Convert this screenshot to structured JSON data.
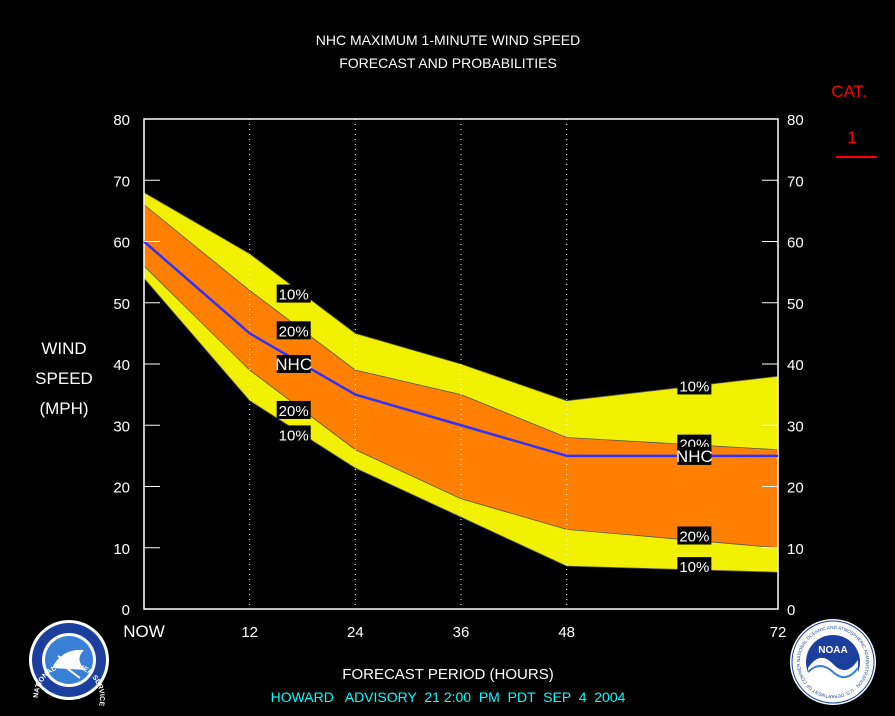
{
  "chart_data": {
    "type": "area",
    "title": "NHC MAXIMUM 1-MINUTE WIND SPEED",
    "subtitle": "FORECAST AND PROBABILITIES",
    "ylabel": [
      "WIND",
      "SPEED",
      "(MPH)"
    ],
    "xlabel": "FORECAST PERIOD (HOURS)",
    "ylim": [
      0,
      80
    ],
    "xlim": [
      0,
      72
    ],
    "x_tick_labels": [
      {
        "x": 0,
        "label": "NOW"
      },
      {
        "x": 12,
        "label": "12"
      },
      {
        "x": 24,
        "label": "24"
      },
      {
        "x": 36,
        "label": "36"
      },
      {
        "x": 48,
        "label": "48"
      },
      {
        "x": 72,
        "label": "72"
      }
    ],
    "y_ticks": [
      0,
      10,
      20,
      30,
      40,
      50,
      60,
      70,
      80
    ],
    "vertical_gridlines_at": [
      12,
      24,
      36,
      48
    ],
    "x": [
      0,
      12,
      24,
      36,
      48,
      72
    ],
    "bands": [
      {
        "name": "10%",
        "color": "#f0f000",
        "upper": [
          68,
          58,
          45,
          40,
          34,
          38
        ],
        "lower": [
          54,
          34,
          23,
          15,
          7,
          6
        ]
      },
      {
        "name": "20%",
        "color": "#ff8000",
        "upper": [
          66,
          52,
          39,
          35,
          28,
          26
        ],
        "lower": [
          56,
          39,
          26,
          18,
          13,
          10
        ]
      }
    ],
    "series": [
      {
        "name": "NHC",
        "color": "#3030ff",
        "values": [
          60,
          45,
          35,
          30,
          25,
          25
        ]
      }
    ],
    "band_labels": [
      {
        "text": "10%",
        "x": 17,
        "y": 51.5
      },
      {
        "text": "20%",
        "x": 17,
        "y": 45.5
      },
      {
        "text": "NHC",
        "x": 17,
        "y": 40.0
      },
      {
        "text": "20%",
        "x": 17,
        "y": 32.5
      },
      {
        "text": "10%",
        "x": 17,
        "y": 28.5
      },
      {
        "text": "10%",
        "x": 62.5,
        "y": 36.5
      },
      {
        "text": "20%",
        "x": 62.5,
        "y": 27.0
      },
      {
        "text": "NHC",
        "x": 62.5,
        "y": 25.0
      },
      {
        "text": "20%",
        "x": 62.5,
        "y": 12.0
      },
      {
        "text": "10%",
        "x": 62.5,
        "y": 7.0
      }
    ]
  },
  "category": {
    "label": "CAT.",
    "value": "1",
    "color": "#ff0000"
  },
  "advisory": {
    "text": "HOWARD   ADVISORY  21 2:00  PM  PDT  SEP  4  2004",
    "color": "#00ffff"
  },
  "logos": {
    "left": {
      "icon": "national-weather-service-seal",
      "ring_text": "NATIONAL WEATHER SERVICE"
    },
    "right": {
      "icon": "noaa-seal",
      "center_text": "NOAA",
      "ring_text": "NATIONAL OCEANIC AND ATMOSPHERIC ADMINISTRATION · U.S. DEPARTMENT OF COMMERCE"
    }
  }
}
